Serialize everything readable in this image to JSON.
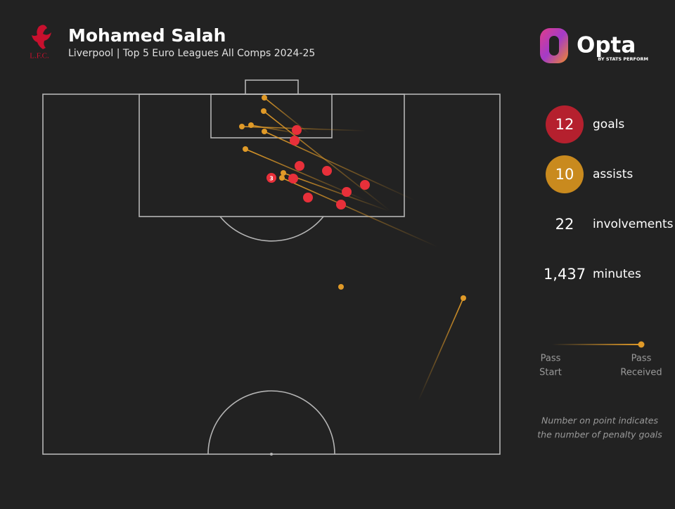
{
  "header": {
    "title": "Mohamed Salah",
    "subtitle": "Liverpool | Top 5 Euro Leagues All Comps 2024-25",
    "club": "L.F.C.",
    "brand": "Opta",
    "brand_sub": "BY STATS PERFORM"
  },
  "pitch": {
    "penalty_goals": "3"
  },
  "stats": [
    {
      "value": "12",
      "label": "goals"
    },
    {
      "value": "10",
      "label": "assists"
    },
    {
      "value": "22",
      "label": "involvements"
    },
    {
      "value": "1,437",
      "label": "minutes"
    }
  ],
  "legend": {
    "start": [
      "Pass",
      "Start"
    ],
    "end": [
      "Pass",
      "Received"
    ]
  },
  "note": [
    "Number on point indicates",
    "the number of penalty goals"
  ]
}
